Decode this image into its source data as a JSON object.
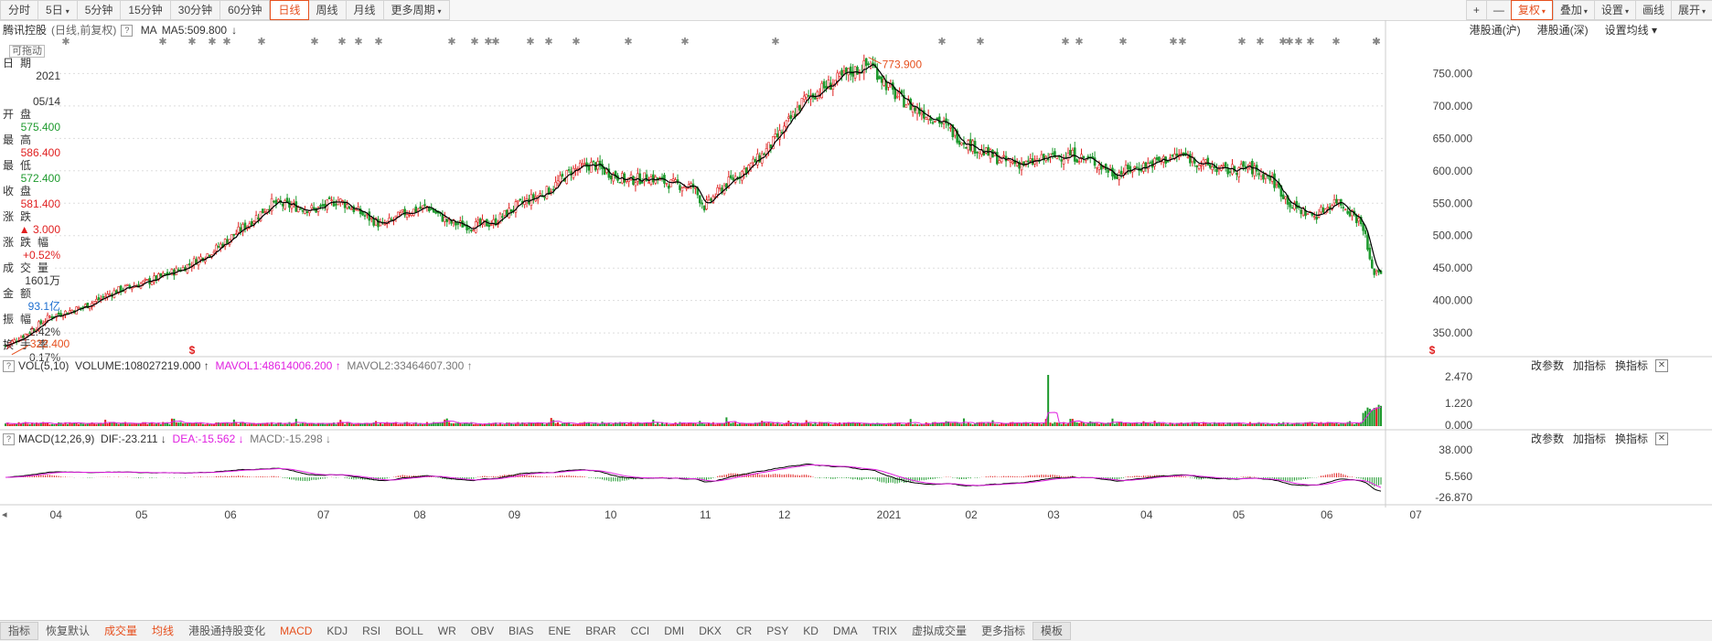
{
  "toolbar": {
    "periods": [
      {
        "label": "分时",
        "caret": false
      },
      {
        "label": "5日",
        "caret": true
      },
      {
        "label": "5分钟",
        "caret": false
      },
      {
        "label": "15分钟",
        "caret": false
      },
      {
        "label": "30分钟",
        "caret": false
      },
      {
        "label": "60分钟",
        "caret": false
      },
      {
        "label": "日线",
        "caret": false,
        "active": true
      },
      {
        "label": "周线",
        "caret": false
      },
      {
        "label": "月线",
        "caret": false
      },
      {
        "label": "更多周期",
        "caret": true
      }
    ],
    "right_tools": [
      {
        "label": "+",
        "caret": false
      },
      {
        "label": "—",
        "caret": false
      },
      {
        "label": "复权",
        "caret": true,
        "highlight": true
      },
      {
        "label": "叠加",
        "caret": true
      },
      {
        "label": "设置",
        "caret": true
      },
      {
        "label": "画线",
        "caret": false
      },
      {
        "label": "展开",
        "caret": true
      }
    ]
  },
  "info": {
    "name": "腾讯控股",
    "sub": "(日线,前复权)",
    "ma_label": "MA",
    "ma5": "MA5:509.800",
    "arrow": "↓",
    "links": [
      "港股通(沪)",
      "港股通(深)",
      "设置均线"
    ]
  },
  "left_panel": {
    "drag_tag": "可拖动",
    "rows": [
      {
        "label": "日期",
        "value": "2021",
        "color": "#333"
      },
      {
        "label": "",
        "value": "05/14",
        "color": "#333"
      },
      {
        "label": "开盘",
        "value": "575.400",
        "color": "#1e9a2e"
      },
      {
        "label": "最高",
        "value": "586.400",
        "color": "#e02020"
      },
      {
        "label": "最低",
        "value": "572.400",
        "color": "#1e9a2e"
      },
      {
        "label": "收盘",
        "value": "581.400",
        "color": "#e02020"
      },
      {
        "label": "涨跌",
        "value": "▲ 3.000",
        "color": "#e02020"
      },
      {
        "label": "涨跌幅",
        "value": "+0.52%",
        "color": "#e02020"
      },
      {
        "label": "成交量",
        "value": "1601万",
        "color": "#333"
      },
      {
        "label": "金额",
        "value": "93.1亿",
        "color": "#1e6fd0"
      },
      {
        "label": "振幅",
        "value": "2.42%",
        "color": "#333"
      },
      {
        "label": "换手率",
        "value": "0.17%",
        "color": "#333"
      }
    ]
  },
  "chart_data": {
    "type": "candlestick",
    "price_axis": {
      "ticks": [
        "750.000",
        "700.000",
        "650.000",
        "600.000",
        "550.000",
        "500.000",
        "450.000",
        "400.000",
        "350.000"
      ]
    },
    "x_labels": [
      "04",
      "05",
      "06",
      "07",
      "08",
      "09",
      "10",
      "11",
      "12",
      "2021",
      "02",
      "03",
      "04",
      "05",
      "06",
      "07"
    ],
    "annotations": {
      "high": "773.900",
      "low": "322.400"
    },
    "markers": [
      "$",
      "$"
    ],
    "close_samples": [
      [
        0,
        330
      ],
      [
        10,
        350
      ],
      [
        20,
        375
      ],
      [
        35,
        390
      ],
      [
        50,
        415
      ],
      [
        65,
        430
      ],
      [
        80,
        450
      ],
      [
        95,
        480
      ],
      [
        110,
        520
      ],
      [
        120,
        550
      ],
      [
        130,
        545
      ],
      [
        140,
        540
      ],
      [
        150,
        555
      ],
      [
        160,
        535
      ],
      [
        170,
        515
      ],
      [
        180,
        535
      ],
      [
        190,
        545
      ],
      [
        200,
        520
      ],
      [
        210,
        515
      ],
      [
        220,
        520
      ],
      [
        230,
        545
      ],
      [
        245,
        570
      ],
      [
        255,
        600
      ],
      [
        265,
        610
      ],
      [
        270,
        600
      ],
      [
        280,
        585
      ],
      [
        290,
        590
      ],
      [
        300,
        580
      ],
      [
        310,
        575
      ],
      [
        315,
        545
      ],
      [
        325,
        580
      ],
      [
        340,
        620
      ],
      [
        350,
        660
      ],
      [
        360,
        710
      ],
      [
        370,
        730
      ],
      [
        380,
        750
      ],
      [
        390,
        765
      ],
      [
        400,
        720
      ],
      [
        410,
        695
      ],
      [
        420,
        680
      ],
      [
        430,
        650
      ],
      [
        440,
        630
      ],
      [
        450,
        615
      ],
      [
        460,
        610
      ],
      [
        470,
        620
      ],
      [
        480,
        625
      ],
      [
        490,
        615
      ],
      [
        500,
        595
      ],
      [
        510,
        605
      ],
      [
        520,
        615
      ],
      [
        530,
        625
      ],
      [
        540,
        610
      ],
      [
        550,
        600
      ],
      [
        560,
        605
      ],
      [
        570,
        590
      ],
      [
        580,
        545
      ],
      [
        590,
        530
      ],
      [
        600,
        555
      ],
      [
        607,
        535
      ],
      [
        612,
        515
      ],
      [
        616,
        445
      ]
    ],
    "volume": {
      "name": "VOL(5,10)",
      "volume": "VOLUME:108027219.000",
      "mavol1": "MAVOL1:48614006.200",
      "mavol2": "MAVOL2:33464607.300",
      "ticks": [
        "2.470",
        "1.220",
        "0.000"
      ]
    },
    "macd": {
      "name": "MACD(12,26,9)",
      "dif": "DIF:-23.211",
      "dea": "DEA:-15.562",
      "macd": "MACD:-15.298",
      "ticks": [
        "38.000",
        "5.560",
        "-26.870"
      ]
    }
  },
  "indicator_actions": [
    "改参数",
    "加指标",
    "换指标"
  ],
  "bottom_tabs": [
    {
      "label": "指标",
      "style": "boxed"
    },
    {
      "label": "恢复默认",
      "style": ""
    },
    {
      "label": "成交量",
      "style": "orange"
    },
    {
      "label": "均线",
      "style": "orange"
    },
    {
      "label": "港股通持股变化",
      "style": ""
    },
    {
      "label": "MACD",
      "style": "orange"
    },
    {
      "label": "KDJ",
      "style": ""
    },
    {
      "label": "RSI",
      "style": ""
    },
    {
      "label": "BOLL",
      "style": ""
    },
    {
      "label": "WR",
      "style": ""
    },
    {
      "label": "OBV",
      "style": ""
    },
    {
      "label": "BIAS",
      "style": ""
    },
    {
      "label": "ENE",
      "style": ""
    },
    {
      "label": "BRAR",
      "style": ""
    },
    {
      "label": "CCI",
      "style": ""
    },
    {
      "label": "DMI",
      "style": ""
    },
    {
      "label": "DKX",
      "style": ""
    },
    {
      "label": "CR",
      "style": ""
    },
    {
      "label": "PSY",
      "style": ""
    },
    {
      "label": "KD",
      "style": ""
    },
    {
      "label": "DMA",
      "style": ""
    },
    {
      "label": "TRIX",
      "style": ""
    },
    {
      "label": "虚拟成交量",
      "style": ""
    },
    {
      "label": "更多指标",
      "style": ""
    },
    {
      "label": "模板",
      "style": "boxed"
    }
  ],
  "colors": {
    "up": "#e02020",
    "down": "#1e9a2e",
    "ma": "#000000",
    "mavol1": "#e020e0",
    "accent": "#e6501e"
  }
}
